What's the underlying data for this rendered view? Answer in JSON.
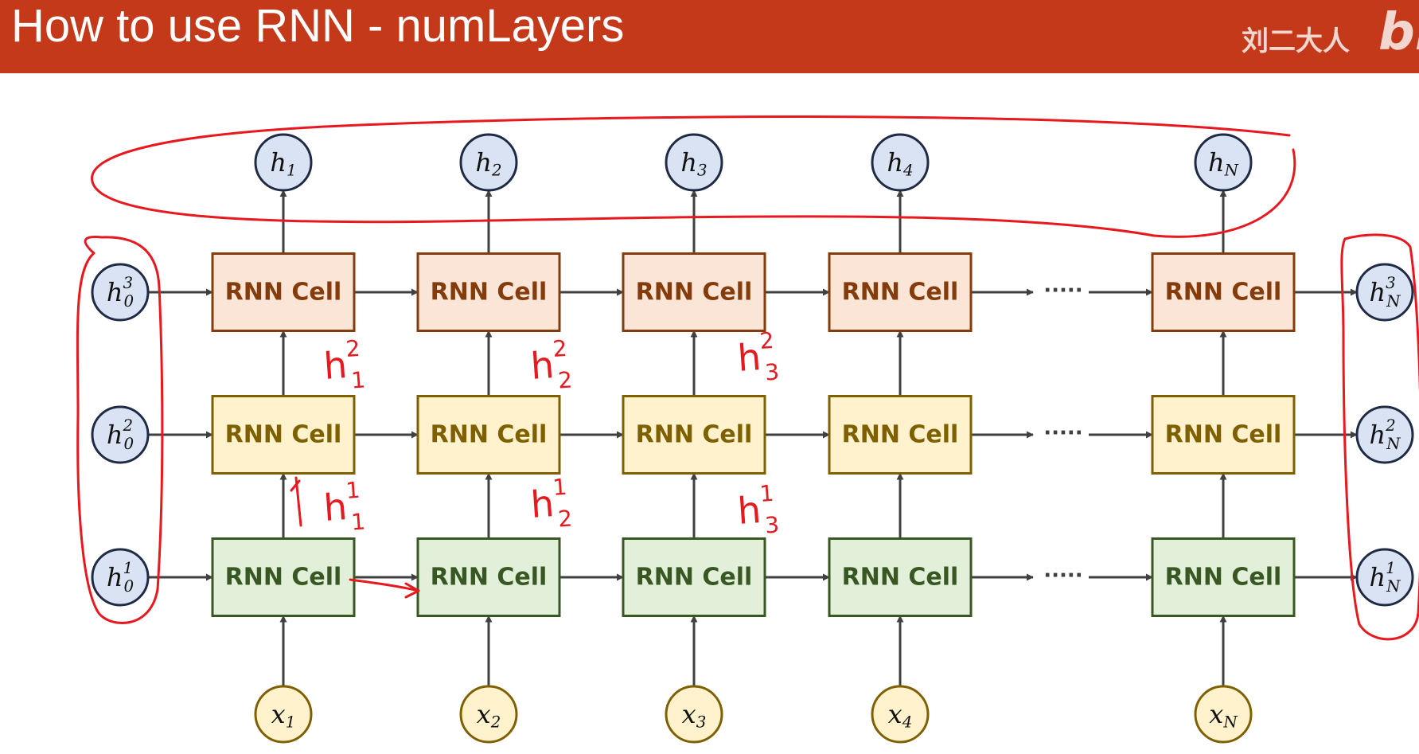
{
  "header": {
    "title": "How to use RNN - numLayers",
    "watermark": "刘二大人",
    "logo_text": "bi"
  },
  "diagram": {
    "cell_label": "RNN Cell",
    "ellipsis": "·····",
    "columns": [
      {
        "output": {
          "base": "h",
          "sub": "1"
        },
        "input": {
          "base": "x",
          "sub": "1"
        }
      },
      {
        "output": {
          "base": "h",
          "sub": "2"
        },
        "input": {
          "base": "x",
          "sub": "2"
        }
      },
      {
        "output": {
          "base": "h",
          "sub": "3"
        },
        "input": {
          "base": "x",
          "sub": "3"
        }
      },
      {
        "output": {
          "base": "h",
          "sub": "4"
        },
        "input": {
          "base": "x",
          "sub": "4"
        }
      },
      {
        "output": {
          "base": "h",
          "sub": "N"
        },
        "input": {
          "base": "x",
          "sub": "N"
        }
      }
    ],
    "layers": [
      {
        "layer": 3,
        "init": {
          "base": "h",
          "sup": "3",
          "sub": "0"
        },
        "final": {
          "base": "h",
          "sup": "3",
          "sub": "N"
        }
      },
      {
        "layer": 2,
        "init": {
          "base": "h",
          "sup": "2",
          "sub": "0"
        },
        "final": {
          "base": "h",
          "sup": "2",
          "sub": "N"
        }
      },
      {
        "layer": 1,
        "init": {
          "base": "h",
          "sup": "1",
          "sub": "0"
        },
        "final": {
          "base": "h",
          "sup": "1",
          "sub": "N"
        }
      }
    ],
    "colors": {
      "header": "#c4391a",
      "hidden_fill": "#dae3f3",
      "hidden_stroke": "#1f2a44",
      "input_fill": "#fff2cc",
      "input_stroke": "#7f6000",
      "layer3_fill": "#fbe5d6",
      "layer3_stroke": "#843c0c",
      "layer3_text": "#843c0c",
      "layer2_fill": "#fff2cc",
      "layer2_stroke": "#7f6000",
      "layer2_text": "#7f6000",
      "layer1_fill": "#e2f0d9",
      "layer1_stroke": "#385723",
      "layer1_text": "#385723",
      "arrow": "#404040",
      "annotation": "#e8191e"
    },
    "annotations": [
      {
        "base": "h",
        "sup": "2",
        "sub": "1"
      },
      {
        "base": "h",
        "sup": "2",
        "sub": "2"
      },
      {
        "base": "h",
        "sup": "2",
        "sub": "3"
      },
      {
        "base": "h",
        "sup": "1",
        "sub": "1"
      },
      {
        "base": "h",
        "sup": "1",
        "sub": "2"
      },
      {
        "base": "h",
        "sup": "1",
        "sub": "3"
      }
    ]
  }
}
